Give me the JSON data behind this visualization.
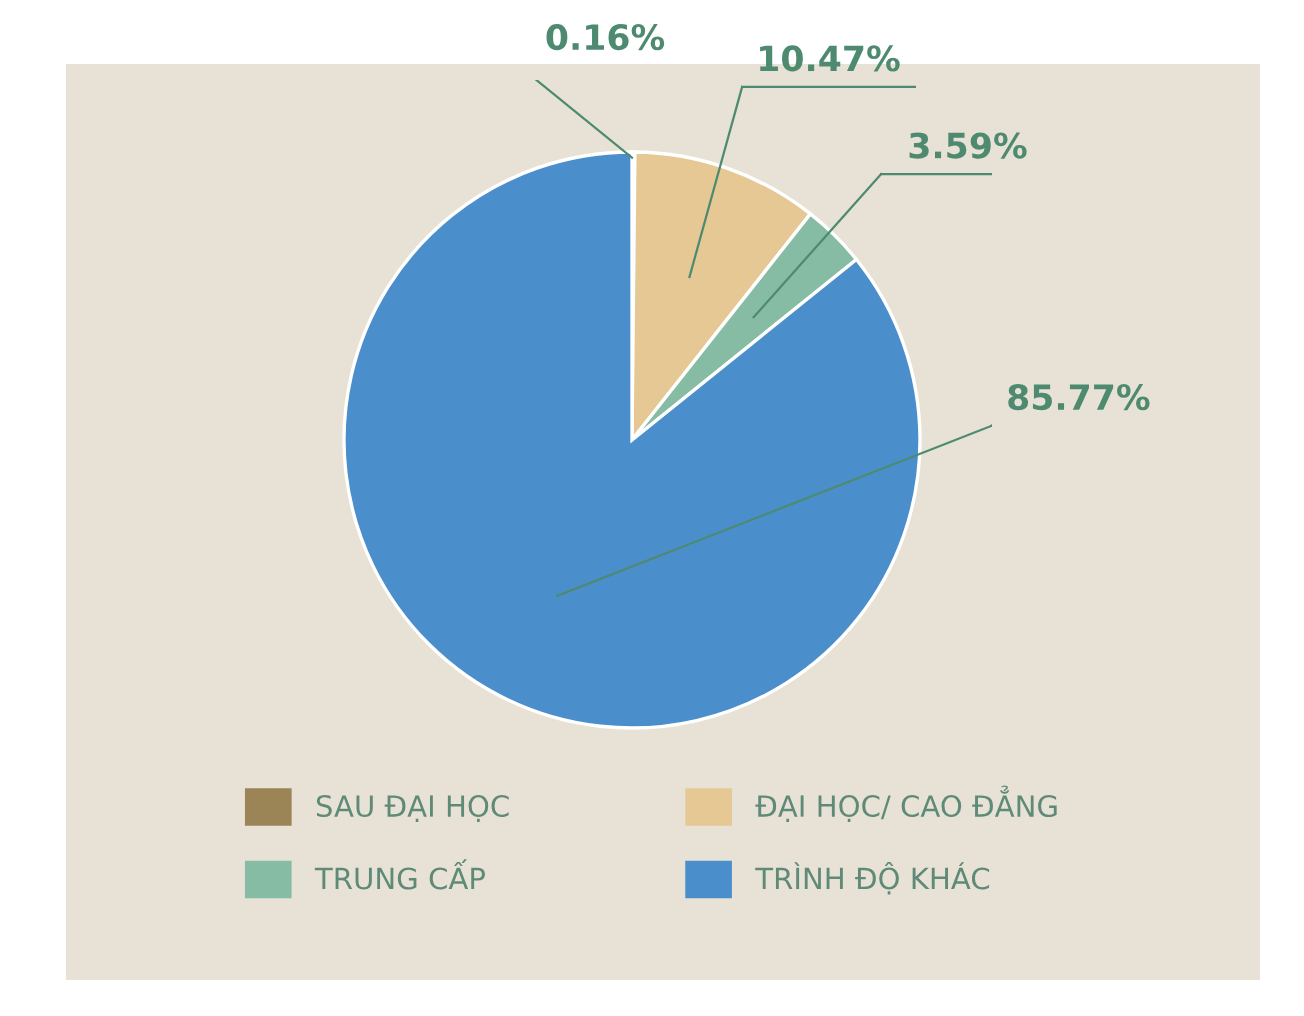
{
  "chart_data": {
    "type": "pie",
    "categories": [
      "SAU ĐẠI HỌC",
      "ĐẠI HỌC/ CAO ĐẲNG",
      "TRUNG CẤP",
      "TRÌNH ĐỘ KHÁC"
    ],
    "values": [
      0.16,
      10.47,
      3.59,
      85.77
    ],
    "value_labels": [
      "0.16%",
      "10.47%",
      "3.59%",
      "85.77%"
    ],
    "colors": [
      "#9b8456",
      "#e6c894",
      "#86bba4",
      "#4a8fcc"
    ],
    "legend": "bottom"
  }
}
